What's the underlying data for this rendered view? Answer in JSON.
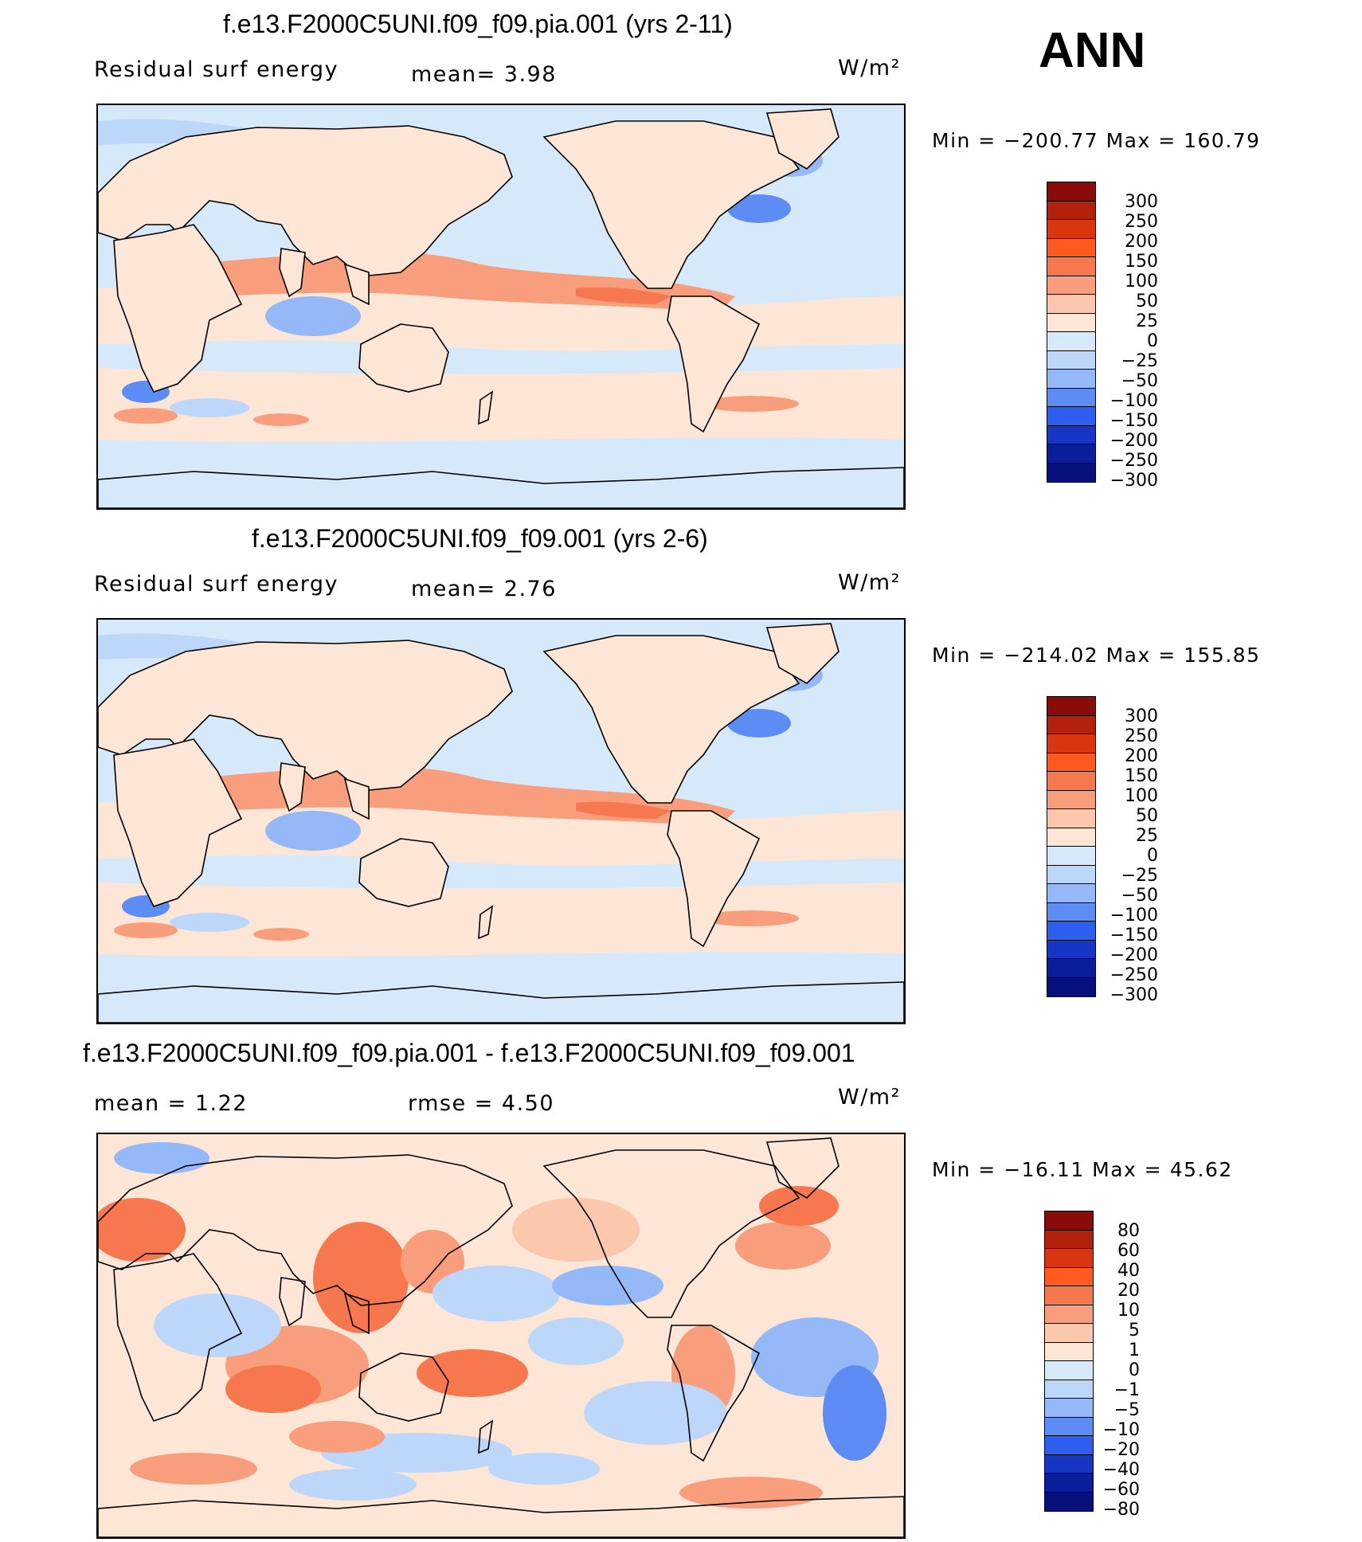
{
  "annual_label": "ANN",
  "panels": [
    {
      "title": "f.e13.F2000C5UNI.f09_f09.pia.001 (yrs 2-11)",
      "left_label": "Residual surf energy",
      "center_label": "mean=    3.98",
      "units": "W/m²",
      "minmax": "Min  =  −200.77  Max  =  160.79",
      "colorbar": [
        "300",
        "250",
        "200",
        "150",
        "100",
        "50",
        "25",
        "0",
        "−25",
        "−50",
        "−100",
        "−150",
        "−200",
        "−250",
        "−300"
      ]
    },
    {
      "title": "f.e13.F2000C5UNI.f09_f09.001 (yrs 2-6)",
      "left_label": "Residual surf energy",
      "center_label": "mean=    2.76",
      "units": "W/m²",
      "minmax": "Min  =  −214.02  Max  =  155.85",
      "colorbar": [
        "300",
        "250",
        "200",
        "150",
        "100",
        "50",
        "25",
        "0",
        "−25",
        "−50",
        "−100",
        "−150",
        "−200",
        "−250",
        "−300"
      ]
    },
    {
      "title": "f.e13.F2000C5UNI.f09_f09.pia.001 - f.e13.F2000C5UNI.f09_f09.001",
      "left_label": "mean  =     1.22",
      "center_label": "rmse  =     4.50",
      "units": "W/m²",
      "minmax": "Min  =  −16.11  Max  =    45.62",
      "colorbar": [
        "80",
        "60",
        "40",
        "20",
        "10",
        "5",
        "1",
        "0",
        "−1",
        "−5",
        "−10",
        "−20",
        "−40",
        "−60",
        "−80"
      ]
    }
  ],
  "colors": {
    "scale": [
      "#8b0a0a",
      "#b3200c",
      "#d93610",
      "#ff5a1f",
      "#f7774e",
      "#f99e7d",
      "#fbc8ad",
      "#fde6d6",
      "#d6e9fb",
      "#bcd7fa",
      "#95b8f9",
      "#5d8cf5",
      "#2e5ef0",
      "#1636c6",
      "#0b1e9a",
      "#07107d"
    ],
    "land": "#fde6d6",
    "ocean": "#d6e9fb"
  },
  "chart_data": [
    {
      "type": "heatmap",
      "title": "f.e13.F2000C5UNI.f09_f09.pia.001 (yrs 2-11)",
      "variable": "Residual surf energy",
      "units": "W/m2",
      "mean": 3.98,
      "min": -200.77,
      "max": 160.79,
      "contour_levels": [
        -300,
        -250,
        -200,
        -150,
        -100,
        -50,
        -25,
        0,
        25,
        50,
        100,
        150,
        200,
        250,
        300
      ],
      "season": "ANN"
    },
    {
      "type": "heatmap",
      "title": "f.e13.F2000C5UNI.f09_f09.001 (yrs 2-6)",
      "variable": "Residual surf energy",
      "units": "W/m2",
      "mean": 2.76,
      "min": -214.02,
      "max": 155.85,
      "contour_levels": [
        -300,
        -250,
        -200,
        -150,
        -100,
        -50,
        -25,
        0,
        25,
        50,
        100,
        150,
        200,
        250,
        300
      ],
      "season": "ANN"
    },
    {
      "type": "heatmap",
      "title": "f.e13.F2000C5UNI.f09_f09.pia.001 - f.e13.F2000C5UNI.f09_f09.001",
      "units": "W/m2",
      "mean": 1.22,
      "rmse": 4.5,
      "min": -16.11,
      "max": 45.62,
      "contour_levels": [
        -80,
        -60,
        -40,
        -20,
        -10,
        -5,
        -1,
        0,
        1,
        5,
        10,
        20,
        40,
        60,
        80
      ],
      "season": "ANN"
    }
  ]
}
